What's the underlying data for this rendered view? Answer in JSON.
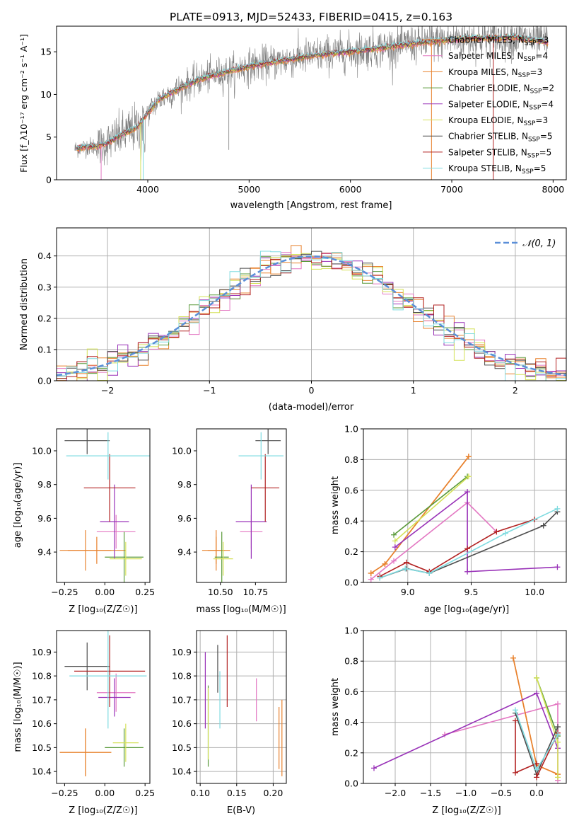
{
  "figure_title": "PLATE=0913, MJD=52433, FIBERID=0415, z=0.163",
  "colors": {
    "series": [
      "#e8822e",
      "#e377c2",
      "#e8822e",
      "#5a9a3a",
      "#9932b8",
      "#d4e157",
      "#4d4d4d",
      "#b22222",
      "#7fdbe0"
    ],
    "observed": "#7f7f7f",
    "gauss": "#5b8fd8",
    "grid": "#b0b0b0"
  },
  "chart_data": [
    {
      "id": "spectrum",
      "type": "line",
      "title": "",
      "xlabel": "wavelength [Angstrom, rest frame]",
      "ylabel": "Flux [f_λ10⁻¹⁷ erg cm⁻² s⁻¹ A⁻¹]",
      "xlim": [
        3100,
        8130
      ],
      "ylim": [
        0,
        18
      ],
      "xticks": [
        4000,
        5000,
        6000,
        7000,
        8000
      ],
      "yticks": [
        0,
        5,
        10,
        15
      ],
      "grid": false,
      "legend_position": "top-right",
      "legend": [
        "Chabrier MILES, N_SSP=3",
        "Salpeter MILES, N_SSP=4",
        "Kroupa MILES, N_SSP=3",
        "Chabrier ELODIE, N_SSP=2",
        "Salpeter ELODIE, N_SSP=4",
        "Kroupa ELODIE, N_SSP=3",
        "Chabrier STELIB, N_SSP=5",
        "Salpeter STELIB, N_SSP=5",
        "Kroupa STELIB, N_SSP=5"
      ],
      "continuum": {
        "x": [
          3280,
          3400,
          3500,
          3600,
          3700,
          3800,
          3900,
          4000,
          4100,
          4200,
          4300,
          4400,
          4500,
          4600,
          4700,
          4800,
          4900,
          5000,
          5200,
          5400,
          5600,
          5800,
          6000,
          6200,
          6400,
          6600,
          6800,
          7000,
          7200,
          7400,
          7600,
          7800,
          8000
        ],
        "y": [
          3.6,
          3.9,
          3.9,
          4.3,
          5.0,
          5.6,
          6.2,
          7.8,
          9.3,
          10.0,
          10.6,
          11.2,
          11.7,
          12.1,
          12.4,
          12.7,
          13.0,
          13.3,
          13.7,
          14.1,
          14.5,
          14.8,
          15.0,
          15.3,
          15.6,
          15.9,
          16.2,
          16.4,
          16.6,
          16.6,
          16.7,
          16.4,
          16.0
        ]
      }
    },
    {
      "id": "residuals",
      "type": "line",
      "title": "",
      "xlabel": "(data-model)/error",
      "ylabel": "Normed distribution",
      "xlim": [
        -2.5,
        2.5
      ],
      "ylim": [
        0,
        0.49
      ],
      "xticks": [
        -2,
        -1,
        0,
        1,
        2
      ],
      "yticks": [
        0.0,
        0.1,
        0.2,
        0.3,
        0.4
      ],
      "grid": true,
      "legend_position": "top-right",
      "legend": [
        "𝒩(0, 1)"
      ],
      "hist_bin_width": 0.1
    },
    {
      "id": "age_vs_Z",
      "type": "scatter",
      "xlabel": "Z [log₁₀(Z/Z☉)]",
      "ylabel": "age  [log₁₀(age/yr)]",
      "xlim": [
        -0.3,
        0.28
      ],
      "ylim": [
        9.22,
        10.13
      ],
      "xticks": [
        -0.25,
        0.0,
        0.25
      ],
      "yticks": [
        9.4,
        9.6,
        9.8,
        10.0
      ],
      "grid": false,
      "points": [
        {
          "x": -0.05,
          "y": 9.41,
          "xerr": 0.18,
          "yerr": 0.08
        },
        {
          "x": 0.07,
          "y": 9.52,
          "xerr": 0.12,
          "yerr": 0.1
        },
        {
          "x": -0.12,
          "y": 9.41,
          "xerr": 0.16,
          "yerr": 0.12
        },
        {
          "x": 0.12,
          "y": 9.37,
          "xerr": 0.12,
          "yerr": 0.15
        },
        {
          "x": 0.06,
          "y": 9.58,
          "xerr": 0.09,
          "yerr": 0.22
        },
        {
          "x": 0.13,
          "y": 9.36,
          "xerr": 0.1,
          "yerr": 0.1
        },
        {
          "x": -0.11,
          "y": 10.06,
          "xerr": 0.14,
          "yerr": 0.08
        },
        {
          "x": 0.03,
          "y": 9.78,
          "xerr": 0.16,
          "yerr": 0.2
        },
        {
          "x": 0.02,
          "y": 9.97,
          "xerr": 0.26,
          "yerr": 0.14
        }
      ]
    },
    {
      "id": "age_vs_mass",
      "type": "scatter",
      "xlabel": "mass [log₁₀(M/M☉)]",
      "ylabel": "",
      "xlim": [
        10.33,
        10.97
      ],
      "ylim": [
        9.22,
        10.13
      ],
      "xticks": [
        10.5,
        10.75
      ],
      "yticks": [
        9.4,
        9.6,
        9.8,
        10.0
      ],
      "grid": false,
      "points": [
        {
          "x": 10.47,
          "y": 9.41,
          "xerr": 0.1,
          "yerr": 0.08
        },
        {
          "x": 10.72,
          "y": 9.52,
          "xerr": 0.08,
          "yerr": 0.1
        },
        {
          "x": 10.47,
          "y": 9.41,
          "xerr": 0.06,
          "yerr": 0.12
        },
        {
          "x": 10.51,
          "y": 9.37,
          "xerr": 0.05,
          "yerr": 0.15
        },
        {
          "x": 10.72,
          "y": 9.58,
          "xerr": 0.11,
          "yerr": 0.22
        },
        {
          "x": 10.52,
          "y": 9.36,
          "xerr": 0.07,
          "yerr": 0.1
        },
        {
          "x": 10.84,
          "y": 10.06,
          "xerr": 0.09,
          "yerr": 0.08
        },
        {
          "x": 10.82,
          "y": 9.78,
          "xerr": 0.1,
          "yerr": 0.2
        },
        {
          "x": 10.79,
          "y": 9.97,
          "xerr": 0.16,
          "yerr": 0.14
        }
      ]
    },
    {
      "id": "weight_vs_age",
      "type": "line",
      "xlabel": "age  [log₁₀(age/yr)]",
      "ylabel": "mass weight",
      "xlim": [
        8.65,
        10.25
      ],
      "ylim": [
        0,
        1
      ],
      "xticks": [
        9.0,
        9.5,
        10.0
      ],
      "yticks": [
        0.0,
        0.2,
        0.4,
        0.6,
        0.8,
        1.0
      ],
      "grid": true,
      "series": [
        {
          "x": [
            8.71,
            8.82,
            9.48
          ],
          "y": [
            0.06,
            0.12,
            0.82
          ]
        },
        {
          "x": [
            8.71,
            8.89,
            9.47,
            9.7
          ],
          "y": [
            0.02,
            0.14,
            0.52,
            0.33
          ]
        },
        {
          "x": [
            8.71,
            8.82,
            9.48
          ],
          "y": [
            0.06,
            0.12,
            0.82
          ]
        },
        {
          "x": [
            8.89,
            9.47
          ],
          "y": [
            0.31,
            0.69
          ]
        },
        {
          "x": [
            8.9,
            9.47,
            9.47,
            10.18
          ],
          "y": [
            0.23,
            0.59,
            0.07,
            0.1
          ]
        },
        {
          "x": [
            8.9,
            9.48
          ],
          "y": [
            0.27,
            0.69
          ]
        },
        {
          "x": [
            8.78,
            8.99,
            9.17,
            10.07,
            10.18
          ],
          "y": [
            0.03,
            0.09,
            0.06,
            0.37,
            0.46
          ]
        },
        {
          "x": [
            8.78,
            8.99,
            9.17,
            9.47,
            9.7,
            10.0
          ],
          "y": [
            0.04,
            0.13,
            0.07,
            0.22,
            0.33,
            0.41
          ]
        },
        {
          "x": [
            8.78,
            8.98,
            9.17,
            9.77,
            10.18
          ],
          "y": [
            0.03,
            0.09,
            0.06,
            0.32,
            0.48
          ]
        }
      ]
    },
    {
      "id": "mass_vs_Z",
      "type": "scatter",
      "xlabel": "Z [log₁₀(Z/Z☉)]",
      "ylabel": "mass [log₁₀(M/M☉)]",
      "xlim": [
        -0.3,
        0.28
      ],
      "ylim": [
        10.35,
        10.99
      ],
      "xticks": [
        -0.25,
        0.0,
        0.25
      ],
      "yticks": [
        10.4,
        10.5,
        10.6,
        10.7,
        10.8,
        10.9
      ],
      "grid": false,
      "points": [
        {
          "x": -0.12,
          "y": 10.48,
          "xerr": 0.16,
          "yerr": 0.1
        },
        {
          "x": 0.07,
          "y": 10.73,
          "xerr": 0.12,
          "yerr": 0.08
        },
        {
          "x": -0.12,
          "y": 10.48,
          "xerr": 0.16,
          "yerr": 0.1
        },
        {
          "x": 0.12,
          "y": 10.5,
          "xerr": 0.12,
          "yerr": 0.08
        },
        {
          "x": 0.06,
          "y": 10.71,
          "xerr": 0.1,
          "yerr": 0.08
        },
        {
          "x": 0.13,
          "y": 10.52,
          "xerr": 0.08,
          "yerr": 0.08
        },
        {
          "x": -0.11,
          "y": 10.84,
          "xerr": 0.14,
          "yerr": 0.1
        },
        {
          "x": 0.03,
          "y": 10.82,
          "xerr": 0.22,
          "yerr": 0.15
        },
        {
          "x": 0.02,
          "y": 10.8,
          "xerr": 0.24,
          "yerr": 0.22
        }
      ]
    },
    {
      "id": "mass_vs_EBV",
      "type": "scatter",
      "xlabel": "E(B-V)",
      "ylabel": "",
      "xlim": [
        0.095,
        0.218
      ],
      "ylim": [
        10.35,
        10.99
      ],
      "xticks": [
        0.1,
        0.15,
        0.2
      ],
      "yticks": [
        10.4,
        10.5,
        10.6,
        10.7,
        10.8,
        10.9
      ],
      "grid": true,
      "points": [
        {
          "x": 0.208,
          "y": 10.54,
          "xerr": 0,
          "yerr": 0.13
        },
        {
          "x": 0.177,
          "y": 10.7,
          "xerr": 0,
          "yerr": 0.09
        },
        {
          "x": 0.212,
          "y": 10.54,
          "xerr": 0,
          "yerr": 0.16
        },
        {
          "x": 0.111,
          "y": 10.59,
          "xerr": 0,
          "yerr": 0.17
        },
        {
          "x": 0.107,
          "y": 10.74,
          "xerr": 0,
          "yerr": 0.16
        },
        {
          "x": 0.111,
          "y": 10.6,
          "xerr": 0,
          "yerr": 0.15
        },
        {
          "x": 0.124,
          "y": 10.83,
          "xerr": 0,
          "yerr": 0.1
        },
        {
          "x": 0.137,
          "y": 10.82,
          "xerr": 0,
          "yerr": 0.15
        },
        {
          "x": 0.127,
          "y": 10.7,
          "xerr": 0,
          "yerr": 0.12
        }
      ]
    },
    {
      "id": "weight_vs_Z",
      "type": "line",
      "xlabel": "Z [log₁₀(Z/Z☉)]",
      "ylabel": "mass weight",
      "xlim": [
        -2.45,
        0.42
      ],
      "ylim": [
        0,
        1
      ],
      "xticks": [
        -2.0,
        -1.5,
        -1.0,
        -0.5,
        0.0
      ],
      "yticks": [
        0.0,
        0.2,
        0.4,
        0.6,
        0.8,
        1.0
      ],
      "grid": true,
      "series": [
        {
          "x": [
            -0.33,
            0.0,
            0.3
          ],
          "y": [
            0.82,
            0.12,
            0.06
          ]
        },
        {
          "x": [
            -1.3,
            0.3,
            0.3
          ],
          "y": [
            0.32,
            0.52,
            0.02
          ]
        },
        {
          "x": [
            -0.33,
            0.0,
            0.3
          ],
          "y": [
            0.82,
            0.12,
            0.06
          ]
        },
        {
          "x": [
            0.0,
            0.3
          ],
          "y": [
            0.69,
            0.31
          ]
        },
        {
          "x": [
            -2.3,
            0.0,
            0.3
          ],
          "y": [
            0.1,
            0.59,
            0.23
          ]
        },
        {
          "x": [
            0.0,
            0.3,
            0.3
          ],
          "y": [
            0.69,
            0.27,
            0.04
          ]
        },
        {
          "x": [
            -0.3,
            0.0,
            0.3
          ],
          "y": [
            0.46,
            0.06,
            0.37
          ]
        },
        {
          "x": [
            -0.3,
            -0.3,
            0.0,
            0.0,
            0.3
          ],
          "y": [
            0.41,
            0.07,
            0.13,
            0.04,
            0.33
          ]
        },
        {
          "x": [
            -0.3,
            0.0,
            0.3
          ],
          "y": [
            0.48,
            0.09,
            0.32
          ]
        }
      ]
    }
  ]
}
